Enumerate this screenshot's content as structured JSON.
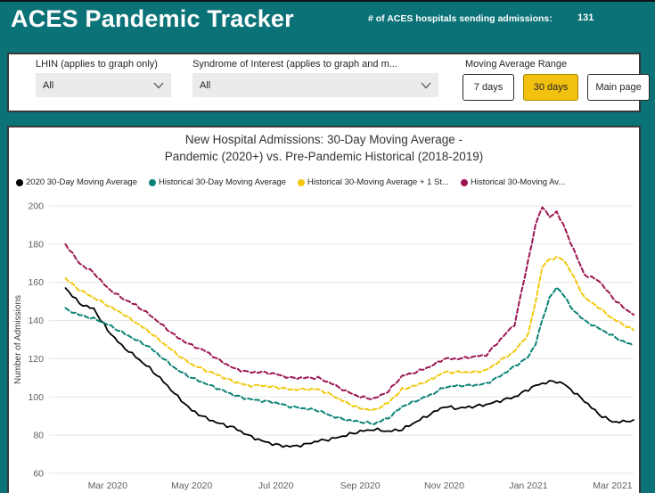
{
  "header": {
    "title": "ACES Pandemic Tracker",
    "hospitals_label": "# of ACES hospitals sending admissions:",
    "hospitals_count": "131"
  },
  "filters": {
    "lhin": {
      "label": "LHIN (applies to graph only)",
      "value": "All"
    },
    "syndrome": {
      "label": "Syndrome of Interest (applies to graph and m...",
      "value": "All"
    },
    "moving_average": {
      "label": "Moving Average Range",
      "buttons": [
        {
          "label": "7 days",
          "active": false
        },
        {
          "label": "30 days",
          "active": true
        },
        {
          "label": "Main page",
          "active": false
        }
      ]
    }
  },
  "chart": {
    "title_line1": "New Hospital Admissions: 30-Day Moving Average -",
    "title_line2": "Pandemic (2020+) vs. Pre-Pandemic Historical (2018-2019)",
    "chart_data": {
      "type": "line",
      "title": "New Hospital Admissions: 30-Day Moving Average - Pandemic (2020+) vs. Pre-Pandemic Historical (2018-2019)",
      "xlabel": "",
      "ylabel": "Number of Admissions",
      "ylim": [
        60,
        200
      ],
      "y_ticks": [
        60,
        80,
        100,
        120,
        140,
        160,
        180,
        200
      ],
      "grid": true,
      "legend_position": "top",
      "x_ticks": [
        {
          "pos": 1,
          "label": "Mar 2020"
        },
        {
          "pos": 3,
          "label": "May 2020"
        },
        {
          "pos": 5,
          "label": "Jul 2020"
        },
        {
          "pos": 7,
          "label": "Sep 2020"
        },
        {
          "pos": 9,
          "label": "Nov 2020"
        },
        {
          "pos": 11,
          "label": "Jan 2021"
        },
        {
          "pos": 13,
          "label": "Mar 2021"
        }
      ],
      "x_unit": "months since Feb 1 2020",
      "x": [
        0,
        0.33,
        0.67,
        1,
        1.33,
        1.67,
        2,
        2.33,
        2.67,
        3,
        3.33,
        3.67,
        4,
        4.33,
        4.67,
        5,
        5.33,
        5.67,
        6,
        6.33,
        6.67,
        7,
        7.33,
        7.67,
        8,
        8.33,
        8.67,
        9,
        9.33,
        9.67,
        10,
        10.33,
        10.67,
        11,
        11.17,
        11.33,
        11.5,
        11.67,
        11.83,
        12,
        12.33,
        12.67,
        13,
        13.25,
        13.5
      ],
      "series": [
        {
          "name": "2020 30-Day Moving Average",
          "color": "#000000",
          "dashed": false,
          "values": [
            157,
            149,
            146,
            135,
            127,
            121,
            115,
            108,
            100,
            93,
            89,
            86,
            84,
            80,
            77,
            75,
            74,
            75,
            77,
            78,
            80,
            82,
            83,
            82,
            83,
            87,
            91,
            95,
            94,
            95,
            96,
            98,
            100,
            104,
            106,
            107,
            108,
            108,
            107,
            104,
            98,
            91,
            87,
            87,
            88
          ]
        },
        {
          "name": "Historical 30-Day Moving Average",
          "color": "#0A8377",
          "dashed": true,
          "values": [
            146,
            143,
            141,
            138,
            134,
            130,
            126,
            120,
            114,
            110,
            107,
            104,
            101,
            99,
            98,
            97,
            95,
            94,
            93,
            90,
            88,
            87,
            86,
            89,
            95,
            98,
            101,
            105,
            106,
            106,
            107,
            111,
            116,
            121,
            128,
            140,
            152,
            157,
            154,
            147,
            140,
            136,
            132,
            129,
            127
          ]
        },
        {
          "name": "Historical 30-Moving Average + 1 St...",
          "color": "#F2C80F",
          "dashed": true,
          "values": [
            162,
            156,
            152,
            148,
            144,
            139,
            134,
            128,
            122,
            117,
            114,
            111,
            108,
            106,
            106,
            105,
            104,
            104,
            104,
            101,
            97,
            94,
            93,
            97,
            104,
            106,
            109,
            113,
            113,
            113,
            114,
            119,
            124,
            133,
            150,
            168,
            172,
            173,
            172,
            166,
            152,
            147,
            141,
            138,
            135
          ]
        },
        {
          "name": "Historical 30-Moving Av...",
          "color": "#9C1652",
          "dashed": true,
          "values": [
            180,
            170,
            165,
            157,
            152,
            148,
            143,
            137,
            131,
            127,
            124,
            119,
            115,
            113,
            113,
            112,
            110,
            110,
            110,
            107,
            103,
            100,
            99,
            103,
            111,
            113,
            116,
            120,
            120,
            121,
            122,
            130,
            138,
            172,
            190,
            200,
            194,
            197,
            190,
            181,
            164,
            161,
            152,
            147,
            143
          ]
        }
      ]
    }
  }
}
